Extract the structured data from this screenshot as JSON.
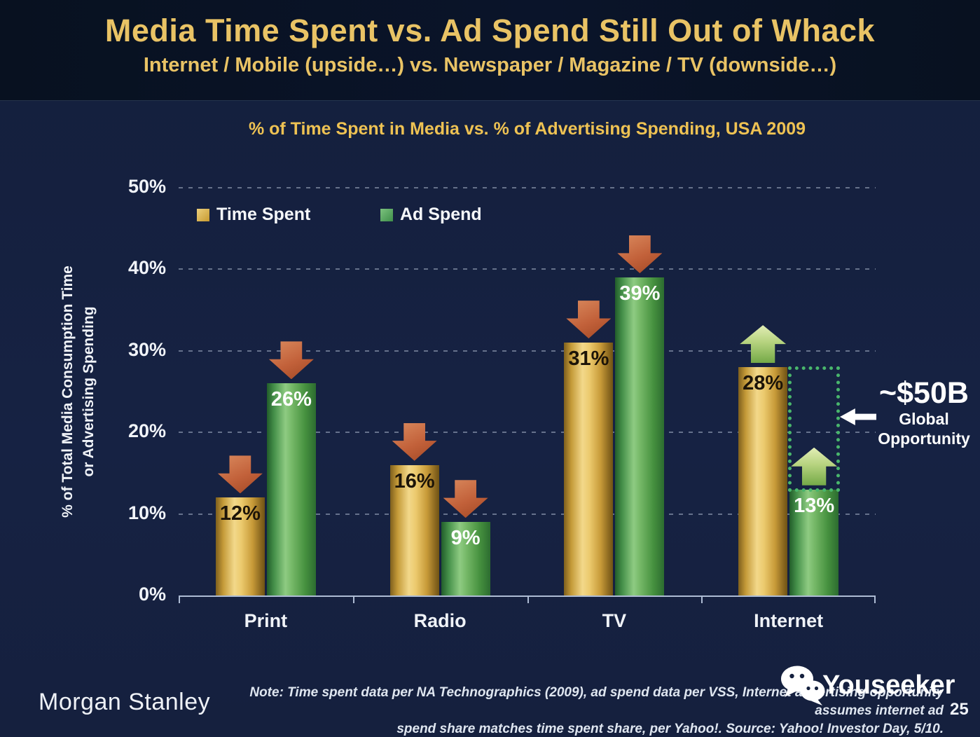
{
  "slide": {
    "title": "Media Time Spent vs. Ad Spend Still Out of Whack",
    "subtitle": "Internet / Mobile (upside…) vs. Newspaper / Magazine / TV (downside…)",
    "page_number": "25"
  },
  "footer": {
    "brand": "Morgan Stanley",
    "note_line1": "Note: Time spent data per NA Technographics (2009), ad spend data per VSS, Internet advertising opportunity assumes internet ad",
    "note_line2": "spend share matches time spent share, per Yahoo!. Source: Yahoo! Investor Day, 5/10.",
    "watermark_text": "Youseeker"
  },
  "chart_data": {
    "type": "bar",
    "title": "% of Time Spent in Media vs. % of Advertising Spending, USA 2009",
    "ylabel_line1": "% of Total Media Consumption Time",
    "ylabel_line2": "or Advertising Spending",
    "categories": [
      "Print",
      "Radio",
      "TV",
      "Internet"
    ],
    "series": [
      {
        "name": "Time Spent",
        "values": [
          12,
          16,
          31,
          28
        ],
        "color": "#D8B254",
        "label_color": "#1c1408"
      },
      {
        "name": "Ad Spend",
        "values": [
          26,
          9,
          39,
          13
        ],
        "color": "#5FAD63",
        "label_color": "#ffffff"
      }
    ],
    "value_suffix": "%",
    "ylim": [
      0,
      50
    ],
    "ytick_step": 10,
    "yticks": [
      "0%",
      "10%",
      "20%",
      "30%",
      "40%",
      "50%"
    ],
    "grid": "dotted-horizontal",
    "legend_position": "top-left-inside",
    "trend_arrows": [
      "down",
      "down",
      "down",
      "up"
    ],
    "trend_colors": {
      "down": "#C2613A",
      "up": "#B6D37F"
    },
    "annotation": {
      "category": "Internet",
      "gap_rect_color": "#49B66C",
      "line1": "~$50B",
      "line2": "Global",
      "line3": "Opportunity"
    }
  }
}
